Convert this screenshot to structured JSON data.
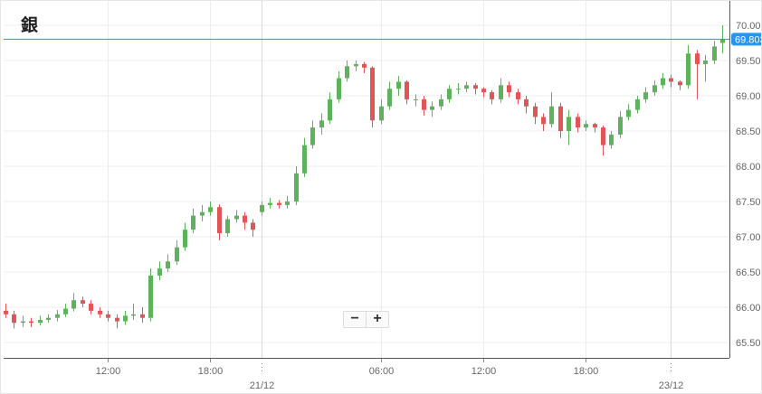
{
  "title": "銀",
  "zoom_controls": {
    "minus": "−",
    "plus": "+"
  },
  "colors": {
    "up": "#5cb35c",
    "down": "#e05555",
    "price_line": "#2196f3",
    "grid": "#ececec"
  },
  "chart_data": {
    "type": "candlestick",
    "title": "銀",
    "ylim": [
      65.3,
      70.35
    ],
    "y_ticks": [
      "65.500",
      "66.000",
      "66.500",
      "67.000",
      "67.500",
      "68.000",
      "68.500",
      "69.000",
      "69.500",
      "70.000"
    ],
    "x_ticks": [
      {
        "label": "12:00",
        "candle": 12,
        "day": false
      },
      {
        "label": "18:00",
        "candle": 24,
        "day": false
      },
      {
        "label": "21/12",
        "candle": 30,
        "day": true
      },
      {
        "label": "06:00",
        "candle": 44,
        "day": false
      },
      {
        "label": "12:00",
        "candle": 56,
        "day": false
      },
      {
        "label": "18:00",
        "candle": 68,
        "day": false
      },
      {
        "label": "23/12",
        "candle": 78,
        "day": true
      }
    ],
    "current_price": "69.803",
    "grid": true,
    "ohlc": [
      [
        65.95,
        66.05,
        65.85,
        65.9
      ],
      [
        65.9,
        65.95,
        65.7,
        65.78
      ],
      [
        65.78,
        65.88,
        65.72,
        65.8
      ],
      [
        65.8,
        65.85,
        65.72,
        65.78
      ],
      [
        65.78,
        65.88,
        65.74,
        65.82
      ],
      [
        65.82,
        65.9,
        65.78,
        65.85
      ],
      [
        65.85,
        65.96,
        65.8,
        65.9
      ],
      [
        65.9,
        66.05,
        65.86,
        65.98
      ],
      [
        65.98,
        66.2,
        65.94,
        66.1
      ],
      [
        66.1,
        66.15,
        66.0,
        66.05
      ],
      [
        66.05,
        66.1,
        65.9,
        65.95
      ],
      [
        65.95,
        66.0,
        65.85,
        65.9
      ],
      [
        65.9,
        65.95,
        65.8,
        65.85
      ],
      [
        65.85,
        65.9,
        65.7,
        65.8
      ],
      [
        65.8,
        65.95,
        65.75,
        65.88
      ],
      [
        65.88,
        66.05,
        65.82,
        65.9
      ],
      [
        65.9,
        66.0,
        65.78,
        65.85
      ],
      [
        65.85,
        66.55,
        65.8,
        66.45
      ],
      [
        66.45,
        66.65,
        66.38,
        66.55
      ],
      [
        66.55,
        66.75,
        66.5,
        66.65
      ],
      [
        66.65,
        66.95,
        66.6,
        66.85
      ],
      [
        66.85,
        67.2,
        66.8,
        67.1
      ],
      [
        67.1,
        67.4,
        67.05,
        67.3
      ],
      [
        67.3,
        67.45,
        67.22,
        67.35
      ],
      [
        67.35,
        67.5,
        67.3,
        67.42
      ],
      [
        67.42,
        67.46,
        66.95,
        67.05
      ],
      [
        67.05,
        67.3,
        67.0,
        67.25
      ],
      [
        67.25,
        67.38,
        67.2,
        67.3
      ],
      [
        67.3,
        67.35,
        67.1,
        67.2
      ],
      [
        67.2,
        67.25,
        67.0,
        67.1
      ],
      [
        67.35,
        67.5,
        67.3,
        67.45
      ],
      [
        67.45,
        67.55,
        67.4,
        67.48
      ],
      [
        67.48,
        67.52,
        67.4,
        67.45
      ],
      [
        67.45,
        67.58,
        67.4,
        67.5
      ],
      [
        67.5,
        68.0,
        67.45,
        67.9
      ],
      [
        67.9,
        68.4,
        67.85,
        68.3
      ],
      [
        68.3,
        68.65,
        68.25,
        68.55
      ],
      [
        68.55,
        68.75,
        68.45,
        68.65
      ],
      [
        68.65,
        69.05,
        68.6,
        68.95
      ],
      [
        68.95,
        69.35,
        68.9,
        69.25
      ],
      [
        69.25,
        69.5,
        69.2,
        69.42
      ],
      [
        69.42,
        69.5,
        69.35,
        69.45
      ],
      [
        69.45,
        69.48,
        69.32,
        69.4
      ],
      [
        69.4,
        69.42,
        68.55,
        68.65
      ],
      [
        68.65,
        68.95,
        68.6,
        68.85
      ],
      [
        68.85,
        69.2,
        68.8,
        69.1
      ],
      [
        69.1,
        69.28,
        69.0,
        69.2
      ],
      [
        69.2,
        69.22,
        68.88,
        68.95
      ],
      [
        68.95,
        69.02,
        68.85,
        68.95
      ],
      [
        68.95,
        69.0,
        68.72,
        68.8
      ],
      [
        68.8,
        68.92,
        68.7,
        68.85
      ],
      [
        68.85,
        69.02,
        68.8,
        68.95
      ],
      [
        68.95,
        69.15,
        68.9,
        69.1
      ],
      [
        69.1,
        69.18,
        69.02,
        69.1
      ],
      [
        69.1,
        69.2,
        69.05,
        69.15
      ],
      [
        69.15,
        69.18,
        69.02,
        69.1
      ],
      [
        69.1,
        69.12,
        68.98,
        69.05
      ],
      [
        69.05,
        69.08,
        68.88,
        68.95
      ],
      [
        68.95,
        69.25,
        68.9,
        69.15
      ],
      [
        69.15,
        69.2,
        68.98,
        69.05
      ],
      [
        69.05,
        69.1,
        68.88,
        68.95
      ],
      [
        68.95,
        69.0,
        68.75,
        68.85
      ],
      [
        68.85,
        68.9,
        68.6,
        68.7
      ],
      [
        68.7,
        68.75,
        68.5,
        68.6
      ],
      [
        68.6,
        69.05,
        68.55,
        68.85
      ],
      [
        68.85,
        68.9,
        68.4,
        68.5
      ],
      [
        68.5,
        68.8,
        68.3,
        68.7
      ],
      [
        68.7,
        68.75,
        68.48,
        68.55
      ],
      [
        68.55,
        68.65,
        68.5,
        68.6
      ],
      [
        68.6,
        68.62,
        68.48,
        68.55
      ],
      [
        68.55,
        68.58,
        68.15,
        68.3
      ],
      [
        68.3,
        68.5,
        68.25,
        68.45
      ],
      [
        68.45,
        68.78,
        68.4,
        68.7
      ],
      [
        68.7,
        68.88,
        68.65,
        68.8
      ],
      [
        68.8,
        69.0,
        68.75,
        68.95
      ],
      [
        68.95,
        69.12,
        68.9,
        69.05
      ],
      [
        69.05,
        69.22,
        69.0,
        69.15
      ],
      [
        69.15,
        69.32,
        69.1,
        69.25
      ],
      [
        69.25,
        69.3,
        69.12,
        69.2
      ],
      [
        69.2,
        69.22,
        69.08,
        69.15
      ],
      [
        69.15,
        69.72,
        69.1,
        69.6
      ],
      [
        69.6,
        69.65,
        68.95,
        69.45
      ],
      [
        69.45,
        69.58,
        69.2,
        69.5
      ],
      [
        69.5,
        69.78,
        69.45,
        69.7
      ],
      [
        69.75,
        70.0,
        69.6,
        69.8
      ]
    ]
  }
}
